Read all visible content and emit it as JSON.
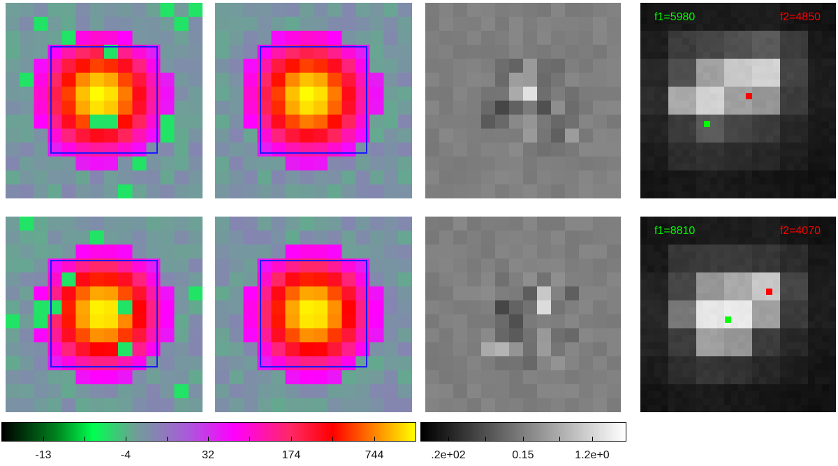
{
  "rows": [
    {
      "f1_label": "f1=5980",
      "f2_label": "f2=4850"
    },
    {
      "f1_label": "f1=8810",
      "f2_label": "f2=4070"
    }
  ],
  "colorbar_heat": {
    "tick_labels": [
      "-13",
      "-4",
      "32",
      "174",
      "744"
    ]
  },
  "colorbar_gray": {
    "tick_labels": [
      ".2e+02",
      "0.15",
      "1.2e+0"
    ]
  },
  "colors": {
    "aperture": "#1a1aff",
    "f1": "#00ff00",
    "f2": "#ff0000"
  }
}
